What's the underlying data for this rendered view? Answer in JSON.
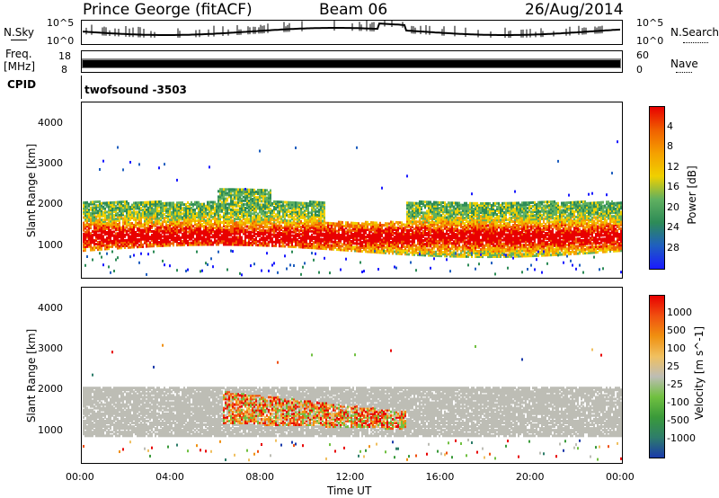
{
  "header": {
    "station": "Prince George (fitACF)",
    "beam": "Beam 06",
    "date": "26/Aug/2014"
  },
  "top_panels": {
    "nsky_label": "N.Sky",
    "nsky_tick_top": "10^5",
    "nsky_tick_bottom": "10^0",
    "nsearch_label": "N.Search",
    "nsearch_tick_top": "10^5",
    "nsearch_tick_bottom": "10^0",
    "freq_label": "Freq.",
    "freq_unit": "[MHz]",
    "freq_tick_top": "18",
    "freq_tick_bottom": "8",
    "nave_label": "Nave",
    "nave_tick_top": "60",
    "nave_tick_bottom": "0",
    "cpid_label": "CPID",
    "cpid_value": "twofsound -3503"
  },
  "chart_data": [
    {
      "type": "heatmap",
      "name": "power",
      "ylabel": "Slant Range [km]",
      "yticks": [
        "1000",
        "2000",
        "3000",
        "4000"
      ],
      "ylim": [
        200,
        4500
      ],
      "xlim": [
        0,
        24
      ],
      "colorbar_label": "Power [dB]",
      "colorbar_ticks": [
        "4",
        "8",
        "12",
        "16",
        "20",
        "24",
        "28"
      ],
      "colorbar_colors": [
        "#1a1aff",
        "#1f5fbf",
        "#2d8b57",
        "#60b060",
        "#f0d000",
        "#f5a000",
        "#f06000",
        "#e80000"
      ]
    },
    {
      "type": "heatmap",
      "name": "velocity",
      "ylabel": "Slant Range [km]",
      "yticks": [
        "1000",
        "2000",
        "3000",
        "4000"
      ],
      "ylim": [
        200,
        4500
      ],
      "xlim": [
        0,
        24
      ],
      "xlabel": "Time UT",
      "xticks": [
        "00:00",
        "04:00",
        "08:00",
        "12:00",
        "16:00",
        "20:00",
        "00:00"
      ],
      "colorbar_label": "Velocity [m s^-1]",
      "colorbar_ticks": [
        "1000",
        "500",
        "100",
        "25",
        "-25",
        "-100",
        "-500",
        "-1000"
      ],
      "colorbar_colors": [
        "#1a3aaa",
        "#2e7d6a",
        "#3a9a3a",
        "#70c040",
        "#bdbdb5",
        "#f0c060",
        "#f09010",
        "#f05010",
        "#e80000"
      ]
    }
  ],
  "colors": {
    "ground_scatter": "#bdbdb5"
  }
}
